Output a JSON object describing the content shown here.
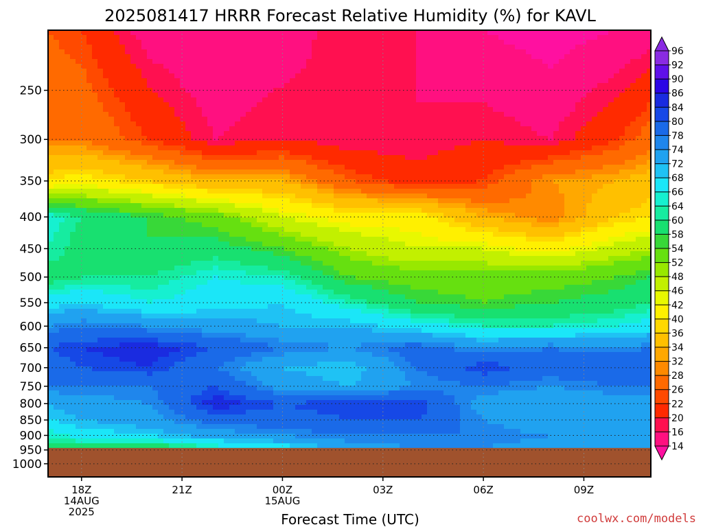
{
  "chart_data": {
    "type": "heatmap",
    "title": "2025081417 HRRR Forecast Relative Humidity (%) for KAVL",
    "xlabel": "Forecast Time (UTC)",
    "ylabel": "",
    "x_ticks": [
      {
        "hour": 18,
        "line1": "18Z",
        "line2": "14AUG",
        "line3": "2025"
      },
      {
        "hour": 21,
        "line1": "21Z",
        "line2": "",
        "line3": ""
      },
      {
        "hour": 24,
        "line1": "00Z",
        "line2": "15AUG",
        "line3": ""
      },
      {
        "hour": 27,
        "line1": "03Z",
        "line2": "",
        "line3": ""
      },
      {
        "hour": 30,
        "line1": "06Z",
        "line2": "",
        "line3": ""
      },
      {
        "hour": 33,
        "line1": "09Z",
        "line2": "",
        "line3": ""
      }
    ],
    "x_range_hours": [
      17,
      35
    ],
    "y_ticks": [
      "250",
      "300",
      "350",
      "400",
      "450",
      "500",
      "550",
      "600",
      "650",
      "700",
      "750",
      "800",
      "850",
      "900",
      "950",
      "1000"
    ],
    "y_axis": "pressure (hPa), log scale, inverted",
    "y_range": [
      200,
      1050
    ],
    "ground_pressure": 943,
    "grid": true,
    "colorbar": {
      "levels": [
        "96",
        "92",
        "90",
        "86",
        "84",
        "80",
        "78",
        "74",
        "72",
        "68",
        "66",
        "64",
        "60",
        "58",
        "54",
        "52",
        "48",
        "46",
        "42",
        "40",
        "36",
        "34",
        "32",
        "28",
        "26",
        "22",
        "20",
        "16",
        "14"
      ],
      "colors": [
        "#8a2be2",
        "#5f10ea",
        "#2b05e6",
        "#1a2be0",
        "#1648e6",
        "#1a6ae8",
        "#1f86ec",
        "#20a2f0",
        "#1fc2f4",
        "#1be6f8",
        "#16f0d0",
        "#16eca0",
        "#18e070",
        "#38d838",
        "#66e010",
        "#98e800",
        "#c2f000",
        "#e8f800",
        "#fff000",
        "#ffd800",
        "#ffc000",
        "#ffa800",
        "#ff8a00",
        "#ff6a00",
        "#ff4a00",
        "#ff2a00",
        "#ff1050",
        "#ff1080",
        "#ff10a0"
      ]
    },
    "series": [
      {
        "hour": 17,
        "pressure": [
          200,
          300,
          350,
          400,
          450,
          500,
          550,
          600,
          650,
          700,
          750,
          800,
          850,
          900,
          943
        ],
        "rh": [
          28,
          32,
          42,
          68,
          66,
          62,
          70,
          78,
          84,
          82,
          80,
          74,
          72,
          66,
          62
        ]
      },
      {
        "hour": 18,
        "pressure": [
          200,
          300,
          350,
          400,
          450,
          500,
          550,
          600,
          650,
          700,
          750,
          800,
          850,
          900,
          943
        ],
        "rh": [
          26,
          32,
          44,
          64,
          62,
          64,
          72,
          80,
          86,
          84,
          80,
          76,
          74,
          70,
          62
        ]
      },
      {
        "hour": 20,
        "pressure": [
          200,
          300,
          350,
          400,
          450,
          500,
          550,
          600,
          650,
          700,
          750,
          800,
          850,
          900,
          943
        ],
        "rh": [
          18,
          26,
          40,
          60,
          60,
          64,
          68,
          78,
          88,
          86,
          80,
          78,
          76,
          72,
          60
        ]
      },
      {
        "hour": 22,
        "pressure": [
          200,
          300,
          350,
          400,
          450,
          500,
          550,
          600,
          650,
          700,
          750,
          800,
          850,
          900,
          943
        ],
        "rh": [
          16,
          20,
          36,
          56,
          62,
          68,
          70,
          76,
          84,
          80,
          84,
          88,
          82,
          76,
          66
        ]
      },
      {
        "hour": 24,
        "pressure": [
          200,
          300,
          350,
          400,
          450,
          500,
          550,
          600,
          650,
          700,
          750,
          800,
          850,
          900,
          943
        ],
        "rh": [
          18,
          22,
          36,
          48,
          58,
          66,
          72,
          74,
          80,
          74,
          76,
          84,
          82,
          78,
          70
        ]
      },
      {
        "hour": 26,
        "pressure": [
          200,
          300,
          350,
          400,
          450,
          500,
          550,
          600,
          650,
          700,
          750,
          800,
          850,
          900,
          943
        ],
        "rh": [
          22,
          20,
          28,
          44,
          52,
          58,
          66,
          74,
          78,
          72,
          74,
          86,
          84,
          80,
          76
        ]
      },
      {
        "hour": 28,
        "pressure": [
          200,
          300,
          350,
          400,
          450,
          500,
          550,
          600,
          650,
          700,
          750,
          800,
          850,
          900,
          943
        ],
        "rh": [
          20,
          20,
          24,
          44,
          48,
          56,
          60,
          70,
          82,
          80,
          78,
          86,
          84,
          80,
          78
        ]
      },
      {
        "hour": 30,
        "pressure": [
          200,
          300,
          350,
          400,
          450,
          500,
          550,
          600,
          650,
          700,
          750,
          800,
          850,
          900,
          943
        ],
        "rh": [
          16,
          22,
          26,
          36,
          48,
          56,
          58,
          66,
          78,
          86,
          80,
          76,
          78,
          80,
          78
        ]
      },
      {
        "hour": 32,
        "pressure": [
          200,
          300,
          350,
          400,
          450,
          500,
          550,
          600,
          650,
          700,
          750,
          800,
          850,
          900,
          943
        ],
        "rh": [
          14,
          20,
          34,
          32,
          44,
          56,
          60,
          66,
          80,
          82,
          78,
          74,
          74,
          78,
          76
        ]
      },
      {
        "hour": 34,
        "pressure": [
          200,
          300,
          350,
          400,
          450,
          500,
          550,
          600,
          650,
          700,
          750,
          800,
          850,
          900,
          943
        ],
        "rh": [
          16,
          26,
          36,
          40,
          50,
          58,
          62,
          68,
          78,
          84,
          80,
          76,
          76,
          78,
          76
        ]
      },
      {
        "hour": 35,
        "pressure": [
          200,
          300,
          350,
          400,
          450,
          500,
          550,
          600,
          650,
          700,
          750,
          800,
          850,
          900,
          943
        ],
        "rh": [
          18,
          30,
          38,
          42,
          52,
          60,
          64,
          70,
          80,
          84,
          80,
          76,
          76,
          78,
          76
        ]
      }
    ]
  },
  "credit": "coolwx.com/models"
}
